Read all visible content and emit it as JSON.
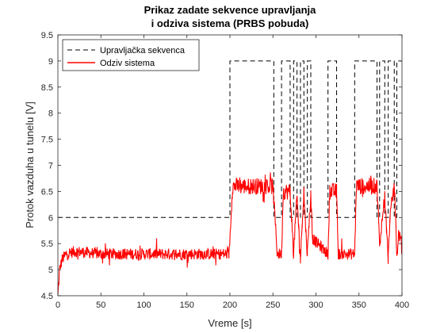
{
  "chart_data": {
    "type": "line",
    "title_lines": [
      "Prikaz zadate sekvence upravljanja",
      "i odziva sistema (PRBS pobuda)"
    ],
    "xlabel": "Vreme [s]",
    "ylabel": "Protok vazduha u tunelu [V]",
    "xlim": [
      0,
      400
    ],
    "ylim": [
      4.5,
      9.5
    ],
    "xticks": [
      0,
      50,
      100,
      150,
      200,
      250,
      300,
      350,
      400
    ],
    "yticks": [
      4.5,
      5,
      5.5,
      6,
      6.5,
      7,
      7.5,
      8,
      8.5,
      9,
      9.5
    ],
    "grid": false,
    "legend_position": "top-left",
    "series": [
      {
        "name": "Upravljačka sekvenca",
        "style": "dashed",
        "color": "#000000",
        "x": [
          0,
          200,
          200,
          251,
          251,
          260,
          260,
          270,
          270,
          274,
          274,
          278,
          278,
          282,
          282,
          286,
          286,
          290,
          290,
          294,
          294,
          314,
          314,
          324,
          324,
          345,
          345,
          371,
          371,
          374,
          374,
          380,
          380,
          384,
          384,
          391,
          391,
          394,
          394,
          400
        ],
        "values": [
          6,
          6,
          9,
          9,
          6,
          6,
          9,
          9,
          6,
          6,
          9,
          9,
          6,
          6,
          9,
          9,
          6,
          6,
          9,
          9,
          6,
          6,
          9,
          9,
          6,
          6,
          9,
          9,
          6,
          6,
          9,
          9,
          6,
          6,
          9,
          9,
          6,
          6,
          9,
          9
        ]
      },
      {
        "name": "Odziv sistema",
        "style": "solid",
        "color": "#ff0000",
        "description_levels": {
          "low": 5.3,
          "high": 6.6
        },
        "x": [
          0,
          2,
          5,
          10,
          20,
          50,
          100,
          150,
          199,
          200,
          203,
          250,
          252,
          255,
          260,
          262,
          270,
          272,
          274,
          276,
          278,
          280,
          282,
          284,
          286,
          288,
          290,
          292,
          294,
          296,
          314,
          316,
          324,
          326,
          345,
          347,
          371,
          373,
          374,
          376,
          380,
          382,
          384,
          386,
          391,
          393,
          394,
          396,
          400
        ],
        "values": [
          4.5,
          5.0,
          5.2,
          5.3,
          5.35,
          5.3,
          5.3,
          5.3,
          5.3,
          5.6,
          6.6,
          6.6,
          6.1,
          5.3,
          5.3,
          6.5,
          6.5,
          5.9,
          5.3,
          5.9,
          6.4,
          5.8,
          5.2,
          5.9,
          6.5,
          5.8,
          5.3,
          5.9,
          6.4,
          5.6,
          5.3,
          6.5,
          6.5,
          5.3,
          5.3,
          6.6,
          6.6,
          5.9,
          5.4,
          5.8,
          6.4,
          5.8,
          5.2,
          6.0,
          6.6,
          5.9,
          5.2,
          5.7,
          5.5
        ]
      }
    ]
  }
}
